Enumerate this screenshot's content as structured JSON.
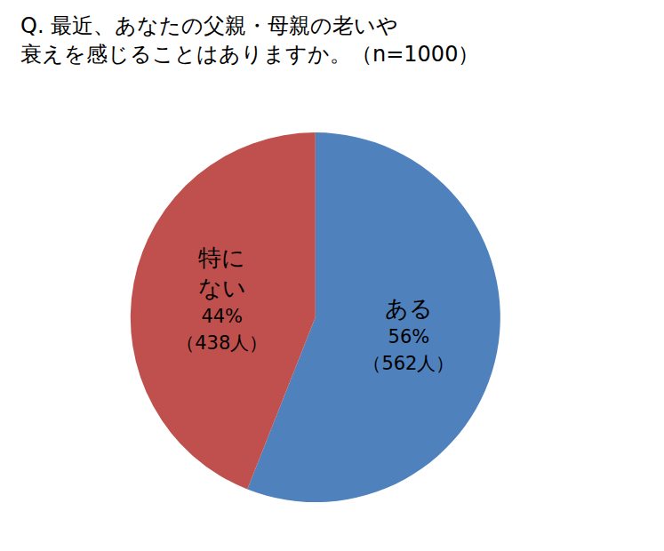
{
  "chart_data": {
    "type": "pie",
    "title": "Q. 最近、あなたの父親・母親の老いや\n衰えを感じることはありますか。（n=1000）",
    "categories": [
      "ある",
      "特に\nない"
    ],
    "values": [
      56,
      44
    ],
    "value_labels": [
      "56%",
      "44%"
    ],
    "count_labels": [
      "（562人）",
      "（438人）"
    ],
    "colors": [
      "#4f81bd",
      "#c0504d"
    ],
    "data_labels": true
  }
}
